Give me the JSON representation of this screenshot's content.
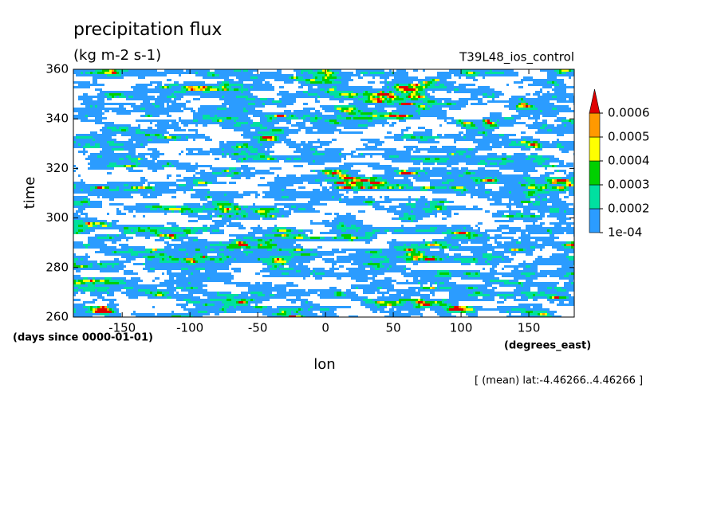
{
  "chart_data": {
    "type": "contour",
    "title": "precipitation flux",
    "subtitle": "(kg m-2 s-1)",
    "run_label": "T39L48_ios_control",
    "x_label": "lon",
    "x_units": "(degrees_east)",
    "y_label": "time",
    "y_units": "(days since 0000-01-01)",
    "footnote": "[ (mean) lat:-4.46266..4.46266 ]",
    "xlim": [
      -186,
      183.5
    ],
    "xticks": [
      -150,
      -100,
      -50,
      0,
      50,
      100,
      150
    ],
    "ylim": [
      260,
      360
    ],
    "yticks": [
      260,
      280,
      300,
      320,
      340,
      360
    ],
    "levels": [
      {
        "value": 0.0001,
        "label": "1e-04"
      },
      0.0002,
      0.0003,
      0.0004,
      0.0005,
      0.0006
    ],
    "colors": [
      "#2b9cff",
      "#00e0a0",
      "#00d000",
      "#ffff00",
      "#ff9900",
      "#e00000"
    ]
  }
}
